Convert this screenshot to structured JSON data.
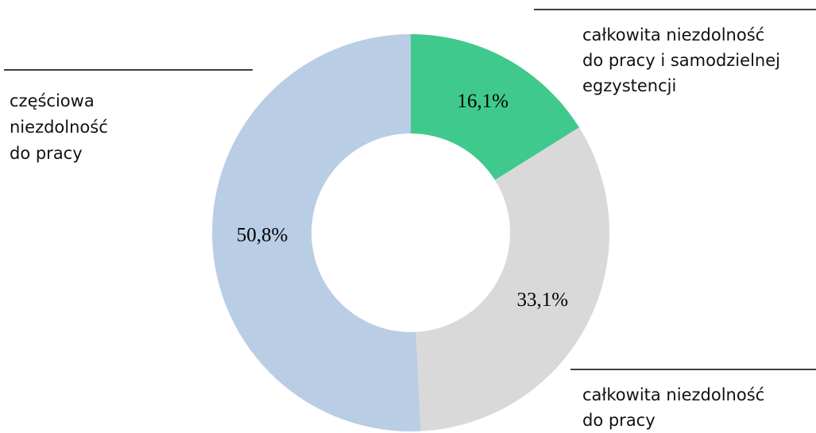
{
  "chart_data": {
    "type": "donut",
    "categories": [
      [
        "całkowita niezdolność",
        "do pracy i samodzielnej",
        "egzystencji"
      ],
      [
        "całkowita niezdolność",
        "do pracy"
      ],
      [
        "częściowa",
        "niezdolność",
        "do pracy"
      ]
    ],
    "values": [
      16.1,
      33.1,
      50.8
    ],
    "value_labels": [
      "16,1%",
      "33,1%",
      "50,8%"
    ],
    "colors": [
      "#40c98c",
      "#d9d9d9",
      "#b9cde5"
    ]
  }
}
